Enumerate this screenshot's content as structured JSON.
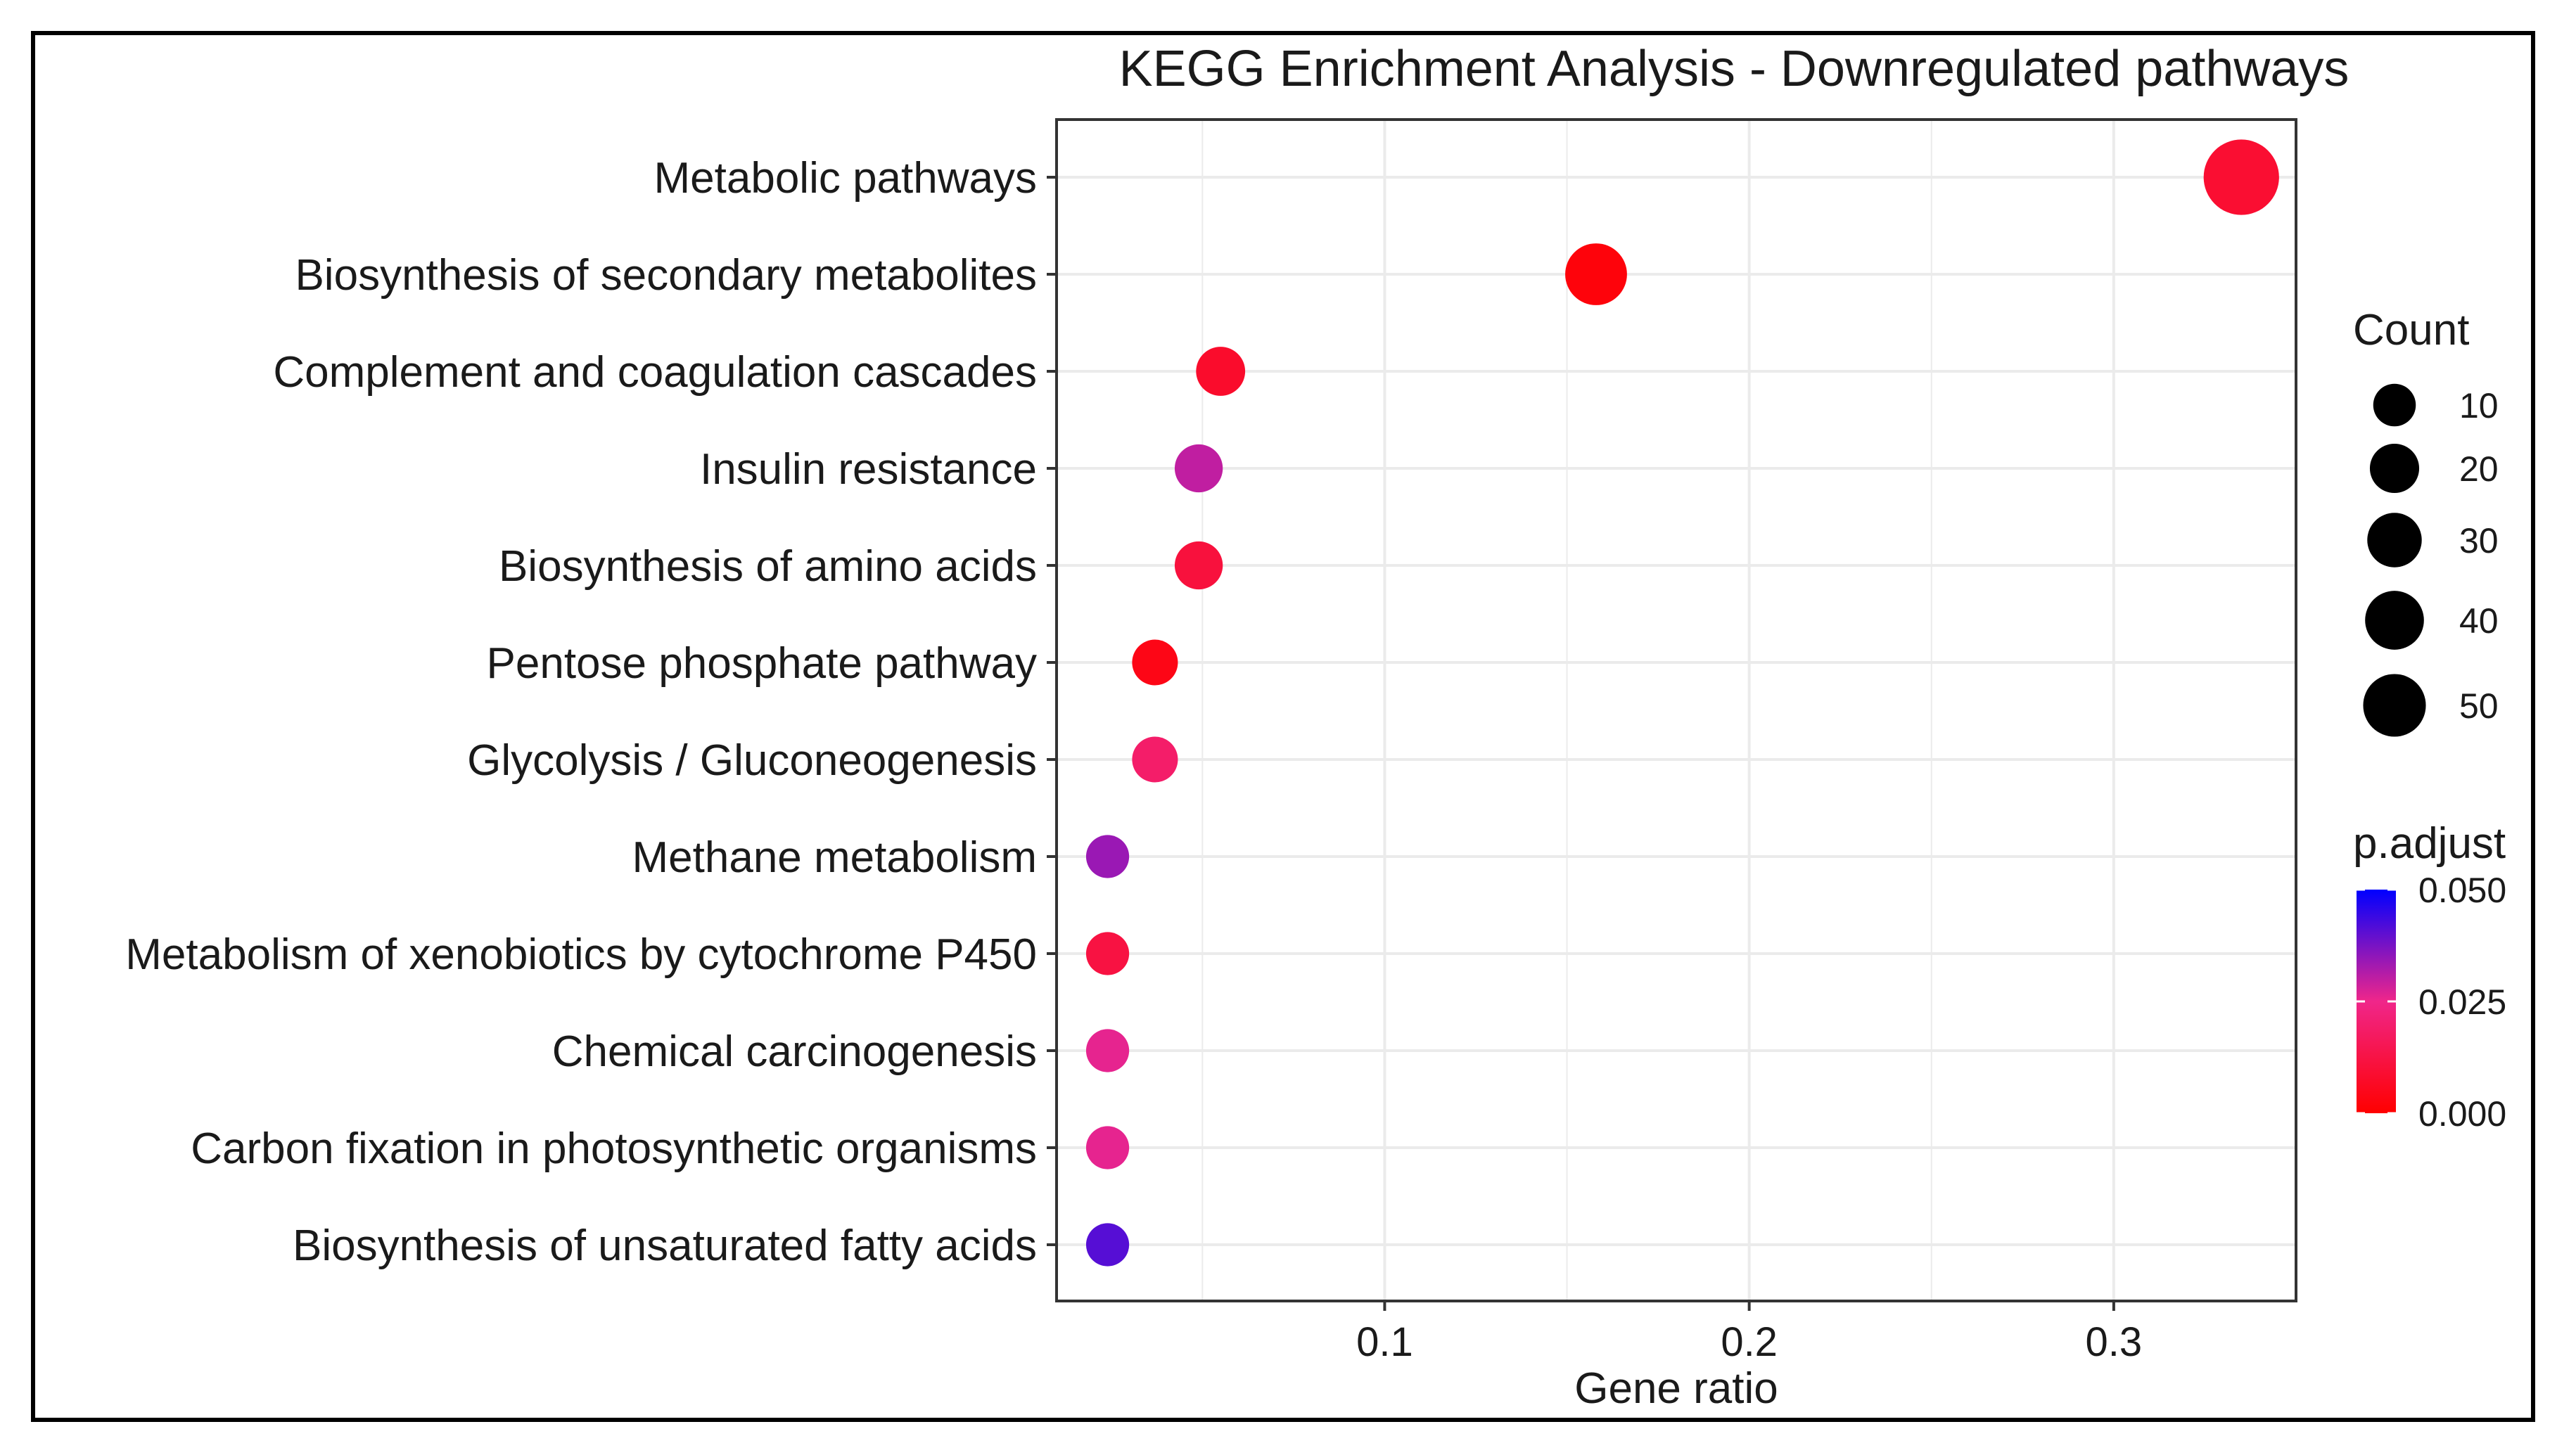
{
  "chart_data": {
    "type": "scatter",
    "title": "KEGG Enrichment Analysis - Downregulated pathways",
    "xlabel": "Gene ratio",
    "ylabel": "",
    "xlim": [
      0.01,
      0.35
    ],
    "xticks": [
      0.1,
      0.2,
      0.3
    ],
    "xtick_labels": [
      "0.1",
      "0.2",
      "0.3"
    ],
    "grid": true,
    "categories": [
      "Metabolic pathways",
      "Biosynthesis of secondary metabolites",
      "Complement and coagulation cascades",
      "Insulin resistance",
      "Biosynthesis of amino acids",
      "Pentose phosphate pathway",
      "Glycolysis / Gluconeogenesis",
      "Methane metabolism",
      "Metabolism of xenobiotics by cytochrome P450",
      "Chemical carcinogenesis",
      "Carbon fixation in photosynthetic organisms",
      "Biosynthesis of unsaturated fatty acids"
    ],
    "points": [
      {
        "pathway": "Metabolic pathways",
        "gene_ratio": 0.335,
        "count": 54,
        "p_adjust": 0.009
      },
      {
        "pathway": "Biosynthesis of secondary metabolites",
        "gene_ratio": 0.158,
        "count": 26,
        "p_adjust": 0.002
      },
      {
        "pathway": "Complement and coagulation cascades",
        "gene_ratio": 0.055,
        "count": 9,
        "p_adjust": 0.008
      },
      {
        "pathway": "Insulin resistance",
        "gene_ratio": 0.049,
        "count": 8,
        "p_adjust": 0.03
      },
      {
        "pathway": "Biosynthesis of amino acids",
        "gene_ratio": 0.049,
        "count": 8,
        "p_adjust": 0.011
      },
      {
        "pathway": "Pentose phosphate pathway",
        "gene_ratio": 0.037,
        "count": 6,
        "p_adjust": 0.004
      },
      {
        "pathway": "Glycolysis / Gluconeogenesis",
        "gene_ratio": 0.037,
        "count": 6,
        "p_adjust": 0.019
      },
      {
        "pathway": "Methane metabolism",
        "gene_ratio": 0.024,
        "count": 4,
        "p_adjust": 0.034
      },
      {
        "pathway": "Metabolism of xenobiotics by cytochrome P450",
        "gene_ratio": 0.024,
        "count": 4,
        "p_adjust": 0.012
      },
      {
        "pathway": "Chemical carcinogenesis",
        "gene_ratio": 0.024,
        "count": 4,
        "p_adjust": 0.026
      },
      {
        "pathway": "Carbon fixation in photosynthetic organisms",
        "gene_ratio": 0.024,
        "count": 4,
        "p_adjust": 0.026
      },
      {
        "pathway": "Biosynthesis of unsaturated fatty acids",
        "gene_ratio": 0.024,
        "count": 4,
        "p_adjust": 0.041
      }
    ],
    "size_legend": {
      "title": "Count",
      "values": [
        10,
        20,
        30,
        40,
        50
      ],
      "labels": [
        "10",
        "20",
        "30",
        "40",
        "50"
      ]
    },
    "color_legend": {
      "title": "p.adjust",
      "range": [
        0.0,
        0.05
      ],
      "ticks": [
        0.05,
        0.025,
        0.0
      ],
      "tick_labels": [
        "0.050",
        "0.025",
        "0.000"
      ],
      "low_color": "#ff0000",
      "high_color": "#0000ff"
    },
    "colors": {
      "grid": "#ebebeb",
      "panel_border": "#333333",
      "text": "#1a1a1a"
    }
  }
}
